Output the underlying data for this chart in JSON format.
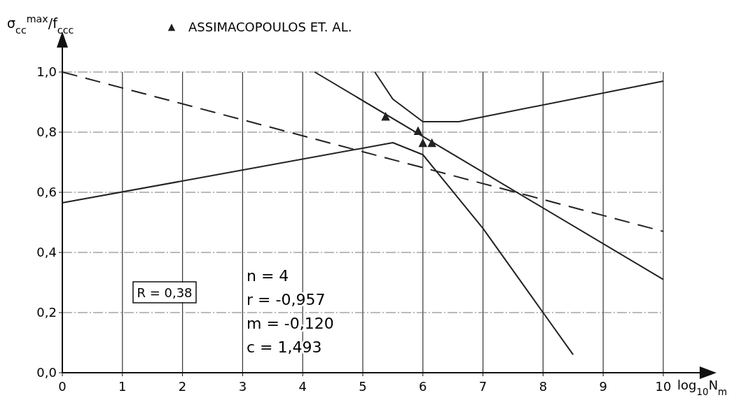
{
  "chart_data": {
    "type": "line",
    "ylabel": "σ$_{cc}$$^{max}$/f$_{ccc}$",
    "xlabel": "log$_{10}$N$_{m}$",
    "xlim": [
      0,
      10
    ],
    "ylim": [
      0,
      1
    ],
    "xticks": [
      0,
      1,
      2,
      3,
      4,
      5,
      6,
      7,
      8,
      9,
      10
    ],
    "yticks": [
      {
        "value": 0,
        "label": "0,0"
      },
      {
        "value": 0.2,
        "label": "0,2"
      },
      {
        "value": 0.4,
        "label": "0,4"
      },
      {
        "value": 0.6,
        "label": "0,6"
      },
      {
        "value": 0.8,
        "label": "0,8"
      },
      {
        "value": 1,
        "label": "1,0"
      }
    ],
    "grid": true,
    "legend": "top",
    "series": [
      {
        "color": "#222222",
        "line_style": "dashed",
        "x": [
          0,
          10
        ],
        "values": [
          1.0,
          0.47
        ]
      },
      {
        "color": "#222222",
        "line_style": "solid",
        "x": [
          0,
          5.5,
          6,
          7,
          8,
          8.5
        ],
        "values": [
          0.565,
          0.765,
          0.725,
          0.48,
          0.2,
          0.06
        ]
      },
      {
        "color": "#222222",
        "line_style": "solid",
        "x": [
          4.2,
          10
        ],
        "values": [
          1.0,
          0.31
        ]
      },
      {
        "color": "#222222",
        "line_style": "solid",
        "x": [
          5.2,
          5.5,
          6,
          6.6,
          10
        ],
        "values": [
          1.0,
          0.91,
          0.835,
          0.835,
          0.97
        ]
      },
      {
        "type": "scatter",
        "name": "ASSIMACOPOULOS ET. AL.",
        "color": "#222222",
        "marker": "triangle",
        "x": [
          5.38,
          5.92,
          6.0,
          6.15
        ],
        "values": [
          0.853,
          0.805,
          0.765,
          0.765
        ]
      }
    ],
    "annotations": [
      "R = 0,38",
      "n = 4",
      "r = -0,957",
      "m = -0,120",
      "c = 1,493"
    ]
  }
}
